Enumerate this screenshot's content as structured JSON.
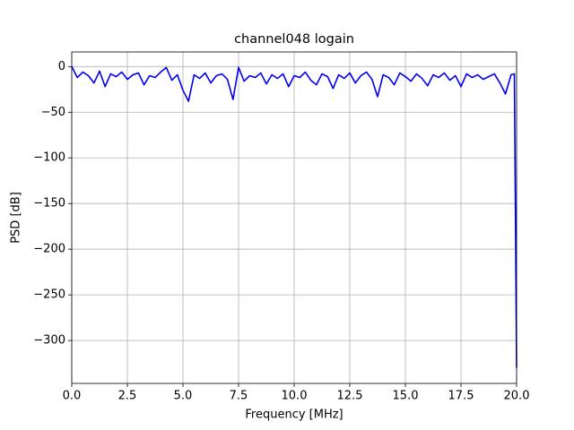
{
  "chart_data": {
    "type": "line",
    "title": "channel048 logain",
    "xlabel": "Frequency [MHz]",
    "ylabel": "PSD [dB]",
    "x": [
      0,
      0.25,
      0.5,
      0.75,
      1.0,
      1.25,
      1.5,
      1.75,
      2.0,
      2.25,
      2.5,
      2.75,
      3.0,
      3.25,
      3.5,
      3.75,
      4.0,
      4.25,
      4.5,
      4.75,
      5.0,
      5.25,
      5.5,
      5.75,
      6.0,
      6.25,
      6.5,
      6.75,
      7.0,
      7.25,
      7.5,
      7.75,
      8.0,
      8.25,
      8.5,
      8.75,
      9.0,
      9.25,
      9.5,
      9.75,
      10.0,
      10.25,
      10.5,
      10.75,
      11.0,
      11.25,
      11.5,
      11.75,
      12.0,
      12.25,
      12.5,
      12.75,
      13.0,
      13.25,
      13.5,
      13.75,
      14.0,
      14.25,
      14.5,
      14.75,
      15.0,
      15.25,
      15.5,
      15.75,
      16.0,
      16.25,
      16.5,
      16.75,
      17.0,
      17.25,
      17.5,
      17.75,
      18.0,
      18.25,
      18.5,
      18.75,
      19.0,
      19.25,
      19.5,
      19.75,
      19.9,
      20
    ],
    "series": [
      {
        "color": "#0000ee",
        "values": [
          0,
          -12,
          -6,
          -10,
          -18,
          -5,
          -22,
          -8,
          -11,
          -6,
          -14,
          -9,
          -7,
          -20,
          -10,
          -12,
          -6,
          -1,
          -15,
          -9,
          -26,
          -38,
          -9,
          -13,
          -7,
          -18,
          -10,
          -8,
          -14,
          -36,
          -1,
          -16,
          -10,
          -12,
          -7,
          -19,
          -9,
          -13,
          -8,
          -22,
          -10,
          -12,
          -6,
          -15,
          -20,
          -8,
          -11,
          -24,
          -9,
          -13,
          -7,
          -18,
          -10,
          -6,
          -14,
          -33,
          -9,
          -12,
          -20,
          -7,
          -11,
          -16,
          -8,
          -13,
          -21,
          -9,
          -12,
          -7,
          -15,
          -10,
          -22,
          -8,
          -12,
          -9,
          -14,
          -11,
          -8,
          -18,
          -30,
          -9,
          -8,
          -330
        ]
      }
    ],
    "xlim": [
      0,
      20
    ],
    "ylim": [
      -347,
      16
    ],
    "xticks": [
      {
        "value": 0,
        "label": "0.0"
      },
      2.5,
      {
        "value": 5,
        "label": "5.0"
      },
      7.5,
      {
        "value": 10,
        "label": "10.0"
      },
      12.5,
      {
        "value": 15,
        "label": "15.0"
      },
      17.5,
      {
        "value": 20,
        "label": "20.0"
      }
    ],
    "yticks": [
      0,
      {
        "value": -50,
        "label": "−50"
      },
      {
        "value": -100,
        "label": "−100"
      },
      {
        "value": -150,
        "label": "−150"
      },
      {
        "value": -200,
        "label": "−200"
      },
      {
        "value": -250,
        "label": "−250"
      },
      {
        "value": -300,
        "label": "−300"
      }
    ],
    "grid": true
  }
}
